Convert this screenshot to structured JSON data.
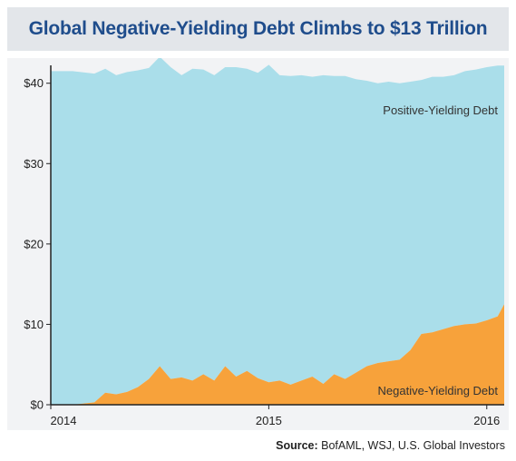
{
  "header": {
    "title": "Global Negative-Yielding Debt Climbs to $13 Trillion"
  },
  "footer": {
    "source_label": "Source:",
    "source_text": " BofAML, WSJ, U.S. Global Investors"
  },
  "colors": {
    "positive": "#aadeea",
    "negative": "#f7a23b",
    "title": "#1f4d8c",
    "title_bg": "#e3e6ea",
    "chart_bg": "#f2f3f5"
  },
  "chart_data": {
    "type": "area",
    "title": "Global Negative-Yielding Debt Climbs to $13 Trillion",
    "xlabel": "",
    "ylabel": "",
    "ylim": [
      0,
      42
    ],
    "xlim": [
      2014.0,
      2016.08
    ],
    "y_ticks": [
      0,
      10,
      20,
      30,
      40
    ],
    "y_tick_labels": [
      "$0",
      "$10",
      "$20",
      "$30",
      "$40"
    ],
    "x_ticks": [
      2014,
      2015,
      2016
    ],
    "x_tick_labels": [
      "2014",
      "2015",
      "2016"
    ],
    "grid": false,
    "stacked": true,
    "x": [
      2014.0,
      2014.1,
      2014.2,
      2014.25,
      2014.3,
      2014.35,
      2014.4,
      2014.45,
      2014.5,
      2014.55,
      2014.6,
      2014.65,
      2014.7,
      2014.75,
      2014.8,
      2014.85,
      2014.9,
      2014.95,
      2015.0,
      2015.05,
      2015.1,
      2015.15,
      2015.2,
      2015.25,
      2015.3,
      2015.35,
      2015.4,
      2015.45,
      2015.5,
      2015.55,
      2015.6,
      2015.65,
      2015.7,
      2015.75,
      2015.8,
      2015.85,
      2015.9,
      2015.95,
      2016.0,
      2016.05,
      2016.08
    ],
    "series": [
      {
        "name": "Negative-Yielding Debt",
        "values": [
          0,
          0,
          0.3,
          1.5,
          1.3,
          1.6,
          2.2,
          3.2,
          4.8,
          3.2,
          3.4,
          3.0,
          3.8,
          3.0,
          4.8,
          3.5,
          4.2,
          3.3,
          2.8,
          3.0,
          2.5,
          3.0,
          3.5,
          2.6,
          3.8,
          3.2,
          4.0,
          4.8,
          5.2,
          5.4,
          5.6,
          6.8,
          8.8,
          9.0,
          9.4,
          9.8,
          10.0,
          10.1,
          10.5,
          11.0,
          12.5
        ]
      },
      {
        "name": "Positive-Yielding Debt",
        "values": [
          41.5,
          41.5,
          40.9,
          40.3,
          39.7,
          39.8,
          39.4,
          38.7,
          38.5,
          38.8,
          37.6,
          38.8,
          37.9,
          38.0,
          37.2,
          38.5,
          37.6,
          38.0,
          39.5,
          38.0,
          38.4,
          38.0,
          37.3,
          38.4,
          37.1,
          37.7,
          36.5,
          35.5,
          34.8,
          34.8,
          34.4,
          33.4,
          31.6,
          31.8,
          31.4,
          31.2,
          31.5,
          31.6,
          31.5,
          31.2,
          29.7
        ]
      }
    ],
    "annotations": [
      "Positive-Yielding Debt",
      "Negative-Yielding Debt"
    ]
  }
}
